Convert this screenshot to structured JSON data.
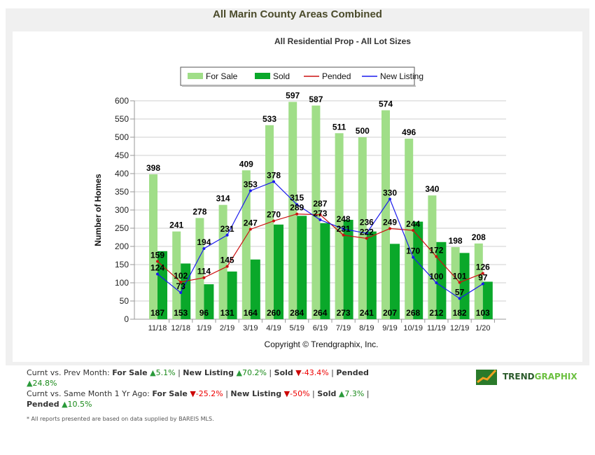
{
  "chart_data": {
    "type": "bar",
    "title": "All Marin County Areas Combined",
    "subtitle": "All Residential Prop - All Lot Sizes",
    "ylabel": "Number of Homes",
    "xlabel": "",
    "ylim": [
      0,
      600
    ],
    "yticks": [
      0,
      50,
      100,
      150,
      200,
      250,
      300,
      350,
      400,
      450,
      500,
      550,
      600
    ],
    "grid": true,
    "legend": "top",
    "categories": [
      "11/18",
      "12/18",
      "1/19",
      "2/19",
      "3/19",
      "4/19",
      "5/19",
      "6/19",
      "7/19",
      "8/19",
      "9/19",
      "10/19",
      "11/19",
      "12/19",
      "1/20"
    ],
    "series": [
      {
        "name": "For Sale",
        "type": "bar",
        "color": "#a0de88",
        "values": [
          398,
          241,
          278,
          314,
          409,
          533,
          597,
          587,
          511,
          500,
          574,
          496,
          340,
          198,
          208
        ]
      },
      {
        "name": "Sold",
        "type": "bar",
        "color": "#0aa82a",
        "values": [
          187,
          153,
          96,
          131,
          164,
          260,
          284,
          264,
          273,
          241,
          207,
          268,
          212,
          182,
          103
        ]
      },
      {
        "name": "Pended",
        "type": "line",
        "color": "#cc1111",
        "values": [
          159,
          102,
          114,
          145,
          247,
          270,
          289,
          287,
          231,
          222,
          249,
          244,
          172,
          101,
          126
        ]
      },
      {
        "name": "New Listing",
        "type": "line",
        "color": "#1a1aee",
        "values": [
          124,
          73,
          194,
          231,
          353,
          378,
          315,
          273,
          248,
          236,
          330,
          170,
          100,
          57,
          97
        ]
      }
    ],
    "copyright": "Copyright © Trendgraphix, Inc."
  },
  "footer": {
    "line1_label": "Curnt vs. Prev Month:",
    "line1": [
      {
        "k": "For Sale",
        "dir": "up",
        "v": "5.1%"
      },
      {
        "k": "New Listing",
        "dir": "up",
        "v": "70.2%"
      },
      {
        "k": "Sold",
        "dir": "down",
        "v": "-43.4%"
      },
      {
        "k": "Pended",
        "dir": "up",
        "v": "24.8%"
      }
    ],
    "line2_label": "Curnt vs. Same Month 1 Yr Ago:",
    "line2": [
      {
        "k": "For Sale",
        "dir": "down",
        "v": "-25.2%"
      },
      {
        "k": "New Listing",
        "dir": "down",
        "v": "-50%"
      },
      {
        "k": "Sold",
        "dir": "up",
        "v": "7.3%"
      },
      {
        "k": "Pended",
        "dir": "up",
        "v": "10.5%"
      }
    ],
    "note": "* All reports presented are based on data supplied by BAREIS MLS."
  },
  "logo": {
    "text_a": "TREND",
    "text_b": "GRAPHIX"
  }
}
